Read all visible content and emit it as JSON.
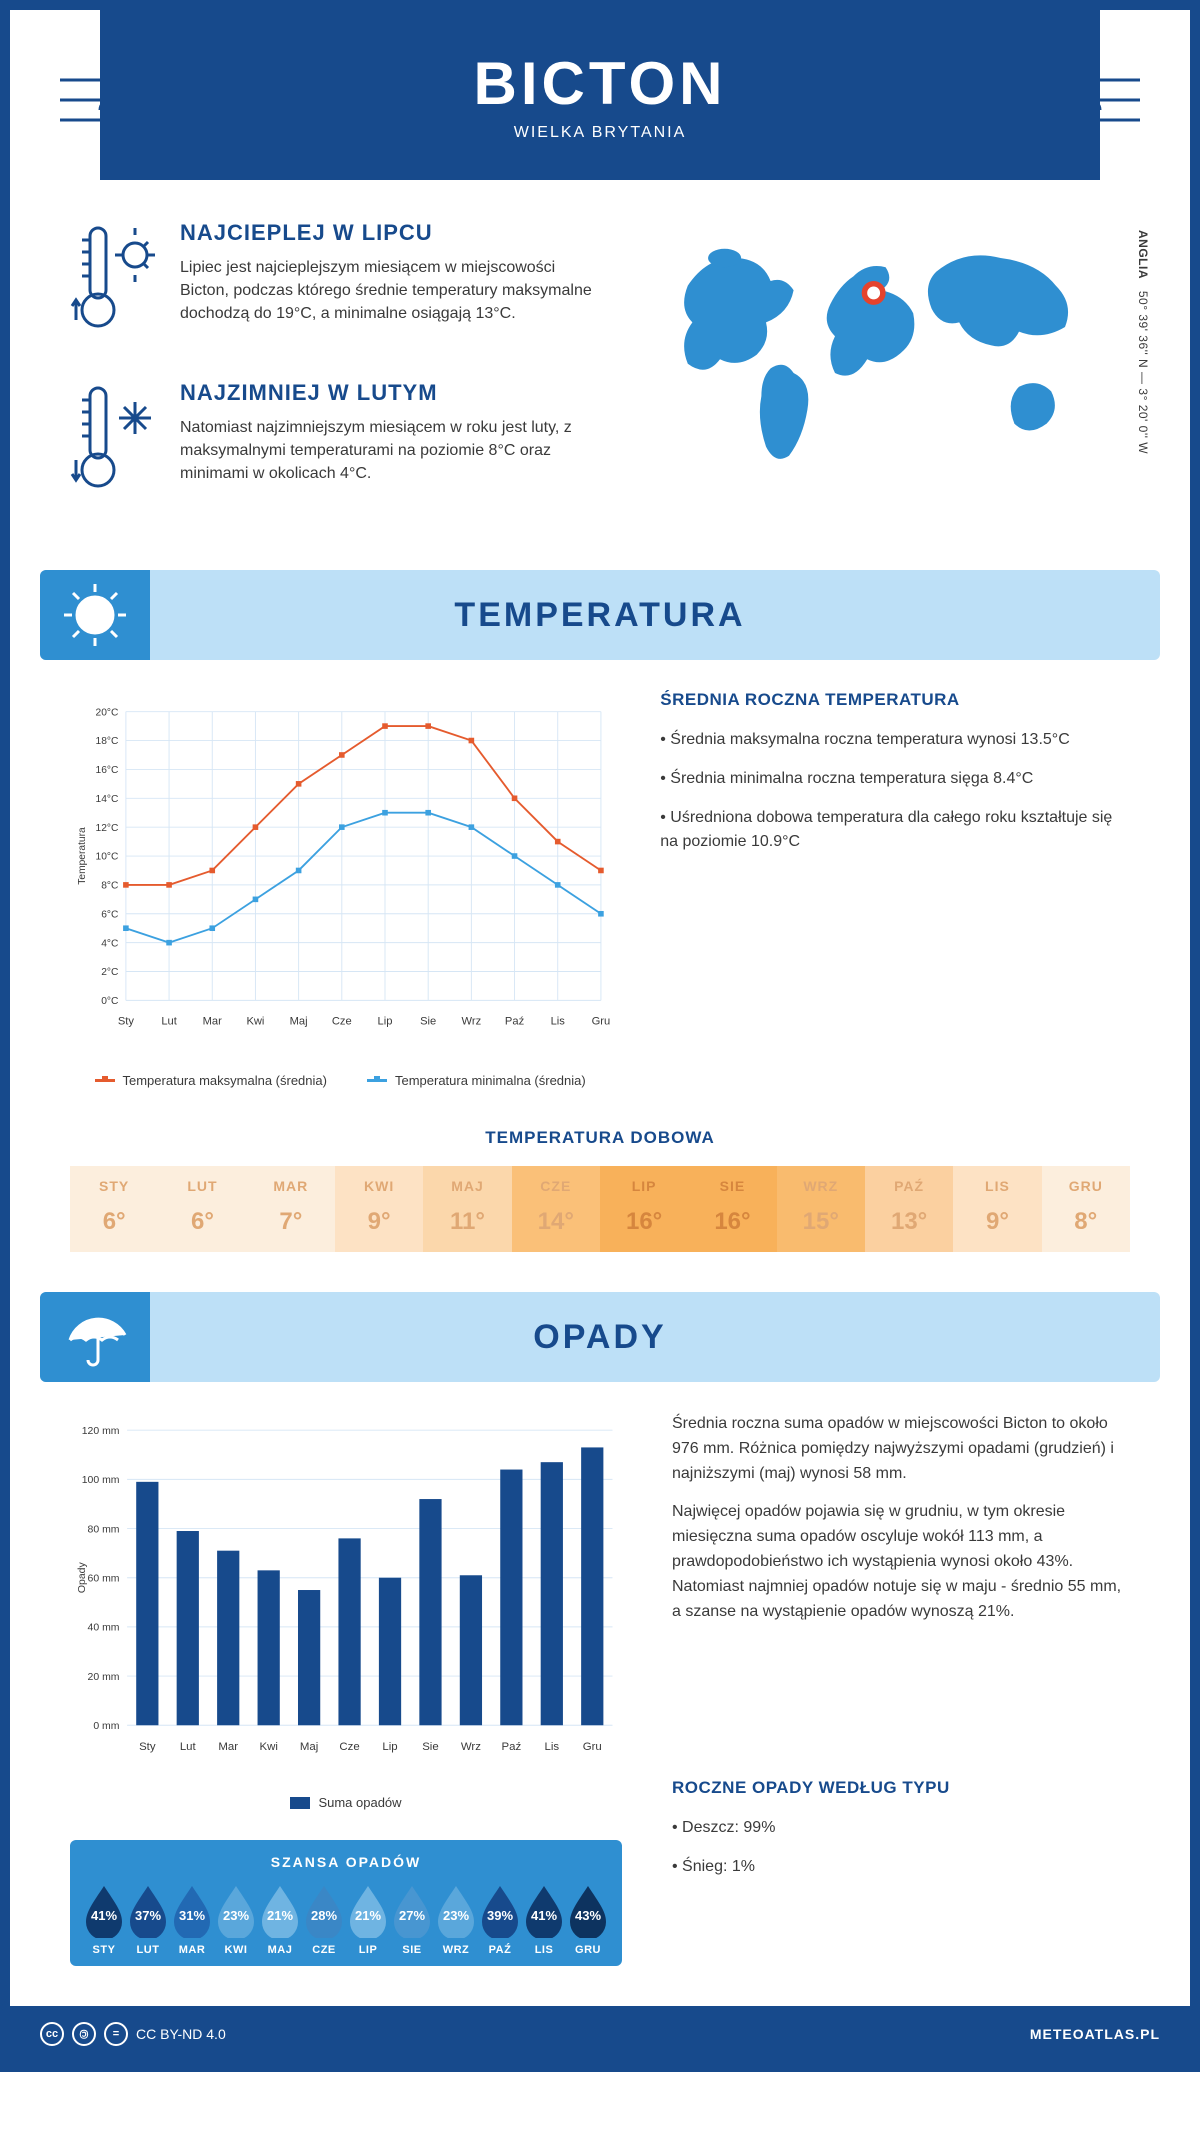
{
  "header": {
    "title": "BICTON",
    "subtitle": "WIELKA BRYTANIA"
  },
  "coords": {
    "region": "ANGLIA",
    "text": "50° 39' 36'' N — 3° 20' 0'' W"
  },
  "hottest": {
    "title": "NAJCIEPLEJ W LIPCU",
    "body": "Lipiec jest najcieplejszym miesiącem w miejscowości Bicton, podczas którego średnie temperatury maksymalne dochodzą do 19°C, a minimalne osiągają 13°C."
  },
  "coldest": {
    "title": "NAJZIMNIEJ W LUTYM",
    "body": "Natomiast najzimniejszym miesiącem w roku jest luty, z maksymalnymi temperaturami na poziomie 8°C oraz minimami w okolicach 4°C."
  },
  "temp_section_title": "TEMPERATURA",
  "temp_chart": {
    "type": "line",
    "months": [
      "Sty",
      "Lut",
      "Mar",
      "Kwi",
      "Maj",
      "Cze",
      "Lip",
      "Sie",
      "Wrz",
      "Paź",
      "Lis",
      "Gru"
    ],
    "max_series": [
      8,
      8,
      9,
      12,
      15,
      17,
      19,
      19,
      18,
      14,
      11,
      9
    ],
    "min_series": [
      5,
      4,
      5,
      7,
      9,
      12,
      13,
      13,
      12,
      10,
      8,
      6
    ],
    "max_color": "#e55b2e",
    "min_color": "#3ca1e0",
    "ylim": [
      0,
      20
    ],
    "ytick_step": 2,
    "grid_color": "#d6e6f5",
    "y_axis_label": "Temperatura",
    "legend_max": "Temperatura maksymalna (średnia)",
    "legend_min": "Temperatura minimalna (średnia)",
    "line_width": 2,
    "marker_size": 4
  },
  "annual_temp": {
    "title": "ŚREDNIA ROCZNA TEMPERATURA",
    "b1": "• Średnia maksymalna roczna temperatura wynosi 13.5°C",
    "b2": "• Średnia minimalna roczna temperatura sięga 8.4°C",
    "b3": "• Uśredniona dobowa temperatura dla całego roku kształtuje się na poziomie 10.9°C"
  },
  "daily_temp": {
    "title": "TEMPERATURA DOBOWA",
    "months": [
      "STY",
      "LUT",
      "MAR",
      "KWI",
      "MAJ",
      "CZE",
      "LIP",
      "SIE",
      "WRZ",
      "PAŹ",
      "LIS",
      "GRU"
    ],
    "values": [
      "6°",
      "6°",
      "7°",
      "9°",
      "11°",
      "14°",
      "16°",
      "16°",
      "15°",
      "13°",
      "9°",
      "8°"
    ],
    "cell_colors": [
      "#fceedd",
      "#fceedd",
      "#fceedd",
      "#fde2c4",
      "#fbd7ab",
      "#fac078",
      "#f8b15a",
      "#f8b15a",
      "#f9bb6e",
      "#fbd0a0",
      "#fde2c4",
      "#fceedd"
    ],
    "header_color": "#d6863e",
    "header_color_light": "#e0a874"
  },
  "rain_section_title": "OPADY",
  "rain_chart": {
    "type": "bar",
    "months": [
      "Sty",
      "Lut",
      "Mar",
      "Kwi",
      "Maj",
      "Cze",
      "Lip",
      "Sie",
      "Wrz",
      "Paź",
      "Lis",
      "Gru"
    ],
    "values": [
      99,
      79,
      71,
      63,
      55,
      76,
      60,
      92,
      61,
      104,
      107,
      113
    ],
    "bar_color": "#174a8c",
    "ylim": [
      0,
      120
    ],
    "ytick_step": 20,
    "grid_color": "#d6e6f5",
    "y_axis_label": "Opady",
    "legend": "Suma opadów",
    "bar_width": 0.55
  },
  "rain_text": {
    "p1": "Średnia roczna suma opadów w miejscowości Bicton to około 976 mm. Różnica pomiędzy najwyższymi opadami (grudzień) i najniższymi (maj) wynosi 58 mm.",
    "p2": "Najwięcej opadów pojawia się w grudniu, w tym okresie miesięczna suma opadów oscyluje wokół 113 mm, a prawdopodobieństwo ich wystąpienia wynosi około 43%. Natomiast najmniej opadów notuje się w maju - średnio 55 mm, a szanse na wystąpienie opadów wynoszą 21%."
  },
  "rain_chance": {
    "title": "SZANSA OPADÓW",
    "months": [
      "STY",
      "LUT",
      "MAR",
      "KWI",
      "MAJ",
      "CZE",
      "LIP",
      "SIE",
      "WRZ",
      "PAŹ",
      "LIS",
      "GRU"
    ],
    "values": [
      "41%",
      "37%",
      "31%",
      "23%",
      "21%",
      "28%",
      "21%",
      "27%",
      "23%",
      "39%",
      "41%",
      "43%"
    ],
    "fill_colors": [
      "#0f3a6e",
      "#174a8c",
      "#2269b3",
      "#5aa7db",
      "#6fb4e2",
      "#3a87c6",
      "#6fb4e2",
      "#4896d1",
      "#5aa7db",
      "#174a8c",
      "#0f3a6e",
      "#0d335f"
    ]
  },
  "rain_type": {
    "title": "ROCZNE OPADY WEDŁUG TYPU",
    "b1": "• Deszcz: 99%",
    "b2": "• Śnieg: 1%"
  },
  "footer": {
    "license": "CC BY-ND 4.0",
    "site": "METEOATLAS.PL"
  },
  "colors": {
    "primary": "#174a8c",
    "section_bg": "#bde0f7",
    "section_icon_bg": "#2f8fd1",
    "map_fill": "#2f8fd1",
    "marker": "#e5432d"
  }
}
